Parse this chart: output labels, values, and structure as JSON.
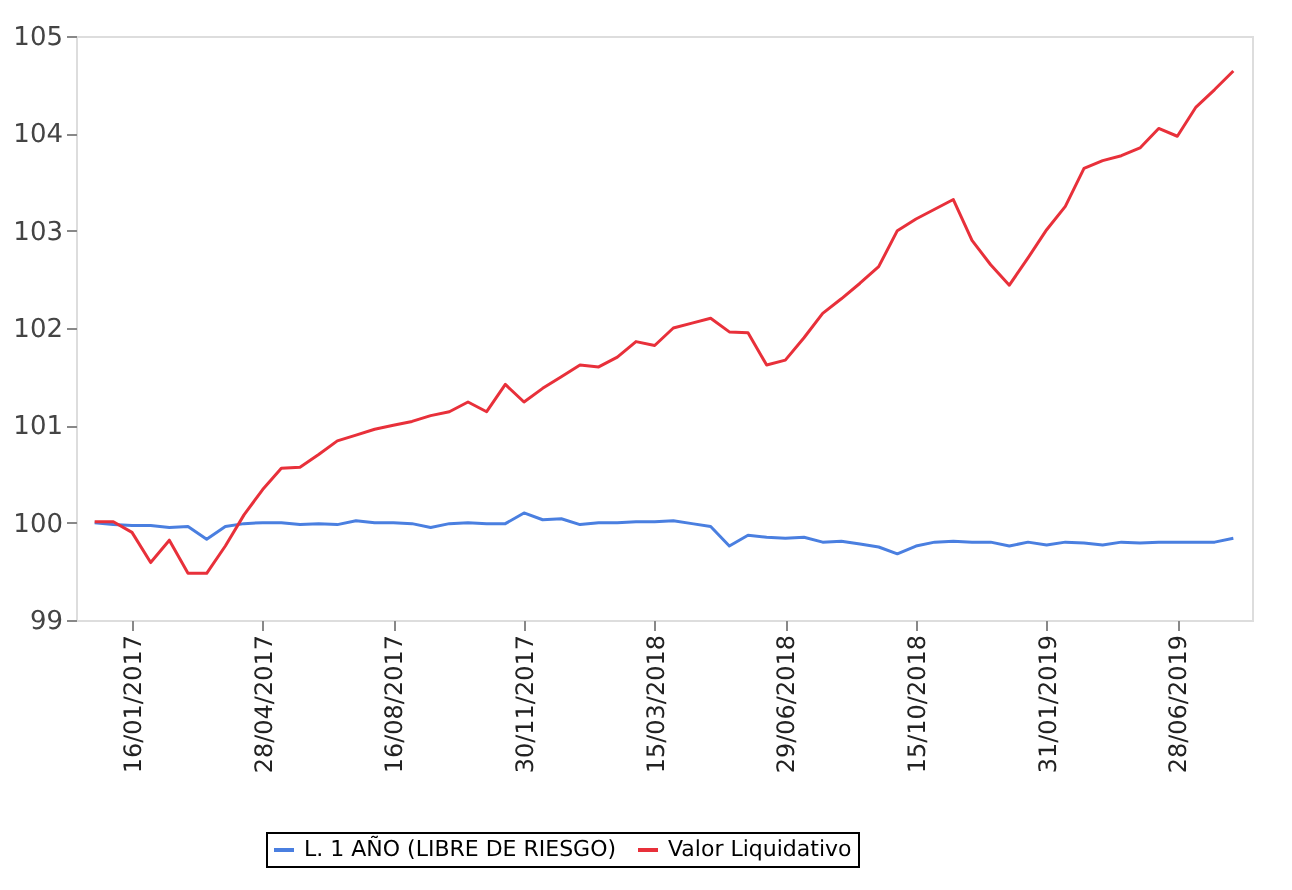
{
  "chart_data": {
    "type": "line",
    "categories": [
      null,
      null,
      "16/01/2017",
      null,
      null,
      null,
      null,
      null,
      null,
      "28/04/2017",
      null,
      null,
      null,
      null,
      null,
      null,
      "16/08/2017",
      null,
      null,
      null,
      null,
      null,
      null,
      "30/11/2017",
      null,
      null,
      null,
      null,
      null,
      null,
      "15/03/2018",
      null,
      null,
      null,
      null,
      null,
      null,
      "29/06/2018",
      null,
      null,
      null,
      null,
      null,
      null,
      "15/10/2018",
      null,
      null,
      null,
      null,
      null,
      null,
      "31/01/2019",
      null,
      null,
      null,
      null,
      null,
      null,
      "28/06/2019",
      null,
      null,
      null
    ],
    "series": [
      {
        "name": "L. 1 AÑO (LIBRE DE RIESGO)",
        "color": "#4a7fe0",
        "values": [
          100.0,
          99.98,
          99.97,
          99.97,
          99.95,
          99.96,
          99.83,
          99.96,
          99.99,
          100.0,
          100.0,
          99.98,
          99.99,
          99.98,
          100.02,
          100.0,
          100.0,
          99.99,
          99.95,
          99.99,
          100.0,
          99.99,
          99.99,
          100.1,
          100.03,
          100.04,
          99.98,
          100.0,
          100.0,
          100.01,
          100.01,
          100.02,
          99.99,
          99.96,
          99.76,
          99.87,
          99.85,
          99.84,
          99.85,
          99.8,
          99.81,
          99.78,
          99.75,
          99.68,
          99.76,
          99.8,
          99.81,
          99.8,
          99.8,
          99.76,
          99.8,
          99.77,
          99.8,
          99.79,
          99.77,
          99.8,
          99.79,
          99.8,
          99.8,
          99.8,
          99.8,
          99.84
        ]
      },
      {
        "name": "Valor Liquidativo",
        "color": "#e8303a",
        "values": [
          100.01,
          100.01,
          99.9,
          99.59,
          99.82,
          99.48,
          99.48,
          99.76,
          100.08,
          100.34,
          100.56,
          100.57,
          100.7,
          100.84,
          100.9,
          100.96,
          101.0,
          101.04,
          101.1,
          101.14,
          101.24,
          101.14,
          101.42,
          101.24,
          101.38,
          101.5,
          101.62,
          101.6,
          101.7,
          101.86,
          101.82,
          102.0,
          102.05,
          102.1,
          101.96,
          101.95,
          101.62,
          101.67,
          101.9,
          102.15,
          102.3,
          102.46,
          102.63,
          103.0,
          103.12,
          103.22,
          103.32,
          102.9,
          102.65,
          102.44,
          102.72,
          103.01,
          103.25,
          103.64,
          103.72,
          103.77,
          103.85,
          104.05,
          103.97,
          104.27,
          104.45,
          104.64
        ]
      }
    ],
    "ylim": [
      99,
      105
    ],
    "yticks": [
      99,
      100,
      101,
      102,
      103,
      104,
      105
    ],
    "grid": false,
    "legend": "bottom",
    "marker": "none",
    "line_style": "solid"
  }
}
